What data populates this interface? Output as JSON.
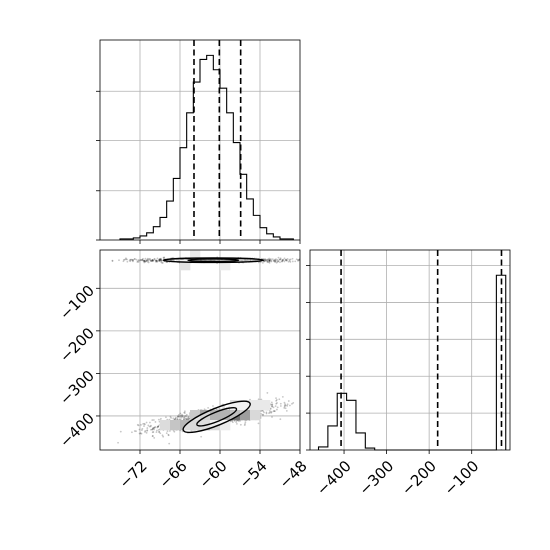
{
  "chart_data": [
    {
      "type": "histogram",
      "panel": "top-left",
      "variable_index": 0,
      "xlim": [
        -78,
        -48
      ],
      "bin_edges": [
        -75,
        -74,
        -73,
        -72,
        -71,
        -70,
        -69,
        -68,
        -67,
        -66,
        -65,
        -64,
        -63,
        -62,
        -61,
        -60,
        -59,
        -58,
        -57,
        -56,
        -55,
        -54,
        -53,
        -52,
        -51,
        -50,
        -49
      ],
      "counts": [
        1,
        1,
        2,
        4,
        7,
        13,
        22,
        38,
        60,
        90,
        124,
        154,
        176,
        180,
        166,
        148,
        124,
        95,
        64,
        40,
        24,
        12,
        6,
        3,
        1,
        1
      ],
      "ylim": [
        0,
        195
      ],
      "yticks": [
        0,
        48,
        97,
        145
      ],
      "quantiles": [
        -63.9,
        -60.1,
        -56.9
      ],
      "grid": true
    },
    {
      "type": "scatter-density",
      "panel": "bottom-left",
      "xlim": [
        -78,
        -48
      ],
      "ylim": [
        -480,
        -10
      ],
      "xticks": [
        -72,
        -66,
        -60,
        -54,
        -48
      ],
      "xtick_labels": [
        "−72",
        "−66",
        "−60",
        "−54",
        "−48"
      ],
      "yticks": [
        -100,
        -200,
        -300,
        -400
      ],
      "ytick_labels": [
        "−100",
        "−200",
        "−300",
        "−400"
      ],
      "clusters": [
        {
          "center": [
            -60.5,
            -402
          ],
          "sd": [
            4.6,
            16
          ],
          "rho": 0.75,
          "n": 1500
        },
        {
          "center": [
            -61,
            -34
          ],
          "sd": [
            6.5,
            2.4
          ],
          "rho": 0.0,
          "n": 700
        }
      ],
      "contours": [
        {
          "center": [
            -60.5,
            -402
          ],
          "levels": [
            [
              5.4,
              20
            ],
            [
              3.2,
              11
            ]
          ]
        },
        {
          "center": [
            -61,
            -34
          ],
          "levels": [
            [
              7.5,
              5.2
            ],
            [
              3.8,
              2.9
            ]
          ]
        }
      ],
      "grid": true
    },
    {
      "type": "histogram",
      "panel": "bottom-right",
      "variable_index": 1,
      "xlim": [
        -480,
        -10
      ],
      "xticks": [
        -400,
        -300,
        -200,
        -100
      ],
      "xtick_labels": [
        "−400",
        "−300",
        "−200",
        "−100"
      ],
      "bin_edges": [
        -460,
        -438,
        -416,
        -394,
        -372,
        -350,
        -328,
        -306,
        -284,
        -262,
        -240,
        -218,
        -196,
        -174,
        -152,
        -130,
        -108,
        -86,
        -64,
        -42,
        -20
      ],
      "counts": [
        8,
        62,
        146,
        128,
        44,
        5,
        0,
        0,
        0,
        0,
        0,
        0,
        0,
        0,
        0,
        0,
        0,
        0,
        0,
        450
      ],
      "ylim": [
        0,
        515
      ],
      "yticks": [
        0,
        95,
        190,
        285,
        380,
        475
      ],
      "quantiles": [
        -407,
        -180,
        -30
      ],
      "grid": true
    }
  ]
}
